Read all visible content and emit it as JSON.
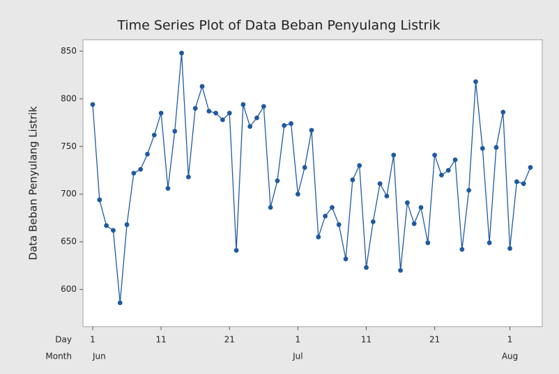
{
  "chart_data": {
    "type": "line",
    "title": "Time Series Plot of Data Beban Penyulang Listrik",
    "y_label": "Data Beban Penyulang Listrik",
    "x_row_labels": [
      "Day",
      "Month"
    ],
    "categories": [
      "1",
      null,
      null,
      null,
      null,
      null,
      null,
      null,
      null,
      null,
      "11",
      null,
      null,
      null,
      null,
      null,
      null,
      null,
      null,
      null,
      "21",
      null,
      null,
      null,
      null,
      null,
      null,
      null,
      null,
      null,
      "1",
      null,
      null,
      null,
      null,
      null,
      null,
      null,
      null,
      null,
      "11",
      null,
      null,
      null,
      null,
      null,
      null,
      null,
      null,
      null,
      "21",
      null,
      null,
      null,
      null,
      null,
      null,
      null,
      null,
      null,
      null,
      "1",
      null,
      null,
      null
    ],
    "months": [
      "Jun",
      null,
      null,
      null,
      null,
      null,
      null,
      null,
      null,
      null,
      null,
      null,
      null,
      null,
      null,
      null,
      null,
      null,
      null,
      null,
      null,
      null,
      null,
      null,
      null,
      null,
      null,
      null,
      null,
      null,
      "Jul",
      null,
      null,
      null,
      null,
      null,
      null,
      null,
      null,
      null,
      null,
      null,
      null,
      null,
      null,
      null,
      null,
      null,
      null,
      null,
      null,
      null,
      null,
      null,
      null,
      null,
      null,
      null,
      null,
      null,
      null,
      "Aug",
      null,
      null,
      null
    ],
    "series": [
      {
        "name": "Data Beban Penyulang Listrik",
        "color": "#1f5aa0",
        "values": [
          794,
          694,
          667,
          662,
          586,
          668,
          722,
          726,
          742,
          762,
          785,
          706,
          766,
          848,
          718,
          790,
          813,
          787,
          785,
          778,
          785,
          641,
          794,
          771,
          780,
          792,
          686,
          714,
          772,
          774,
          700,
          728,
          767,
          655,
          677,
          686,
          668,
          632,
          715,
          730,
          623,
          671,
          711,
          698,
          741,
          620,
          691,
          669,
          686,
          649,
          741,
          720,
          725,
          736,
          642,
          704,
          818,
          748,
          649,
          749,
          786,
          643,
          713,
          711,
          728
        ]
      }
    ],
    "ylim": [
      561,
      862
    ],
    "yticks": [
      600,
      650,
      700,
      750,
      800,
      850
    ],
    "grid": false
  }
}
